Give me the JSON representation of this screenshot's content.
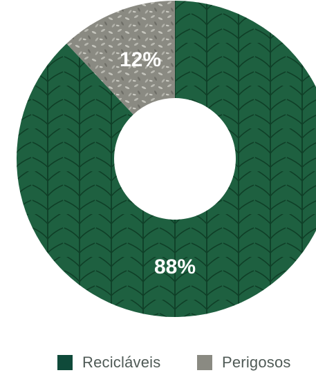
{
  "chart_data": {
    "type": "pie",
    "variant": "donut",
    "slices": [
      {
        "label": "Recicláveis",
        "value": 88,
        "display": "88%",
        "color": "#1e6040"
      },
      {
        "label": "Perigosos",
        "value": 12,
        "display": "12%",
        "color": "#8a8a82"
      }
    ],
    "legend": {
      "position": "bottom",
      "items": [
        {
          "label": "Recicláveis",
          "color": "#1e6040"
        },
        {
          "label": "Perigosos",
          "color": "#8a8a82"
        }
      ]
    }
  }
}
